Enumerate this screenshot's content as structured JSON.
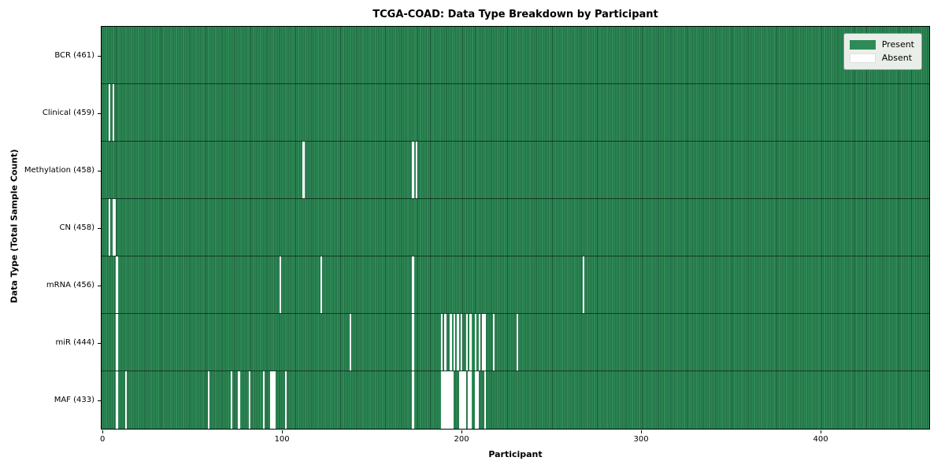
{
  "title": "TCGA-COAD: Data Type Breakdown by Participant",
  "x_axis_label": "Participant",
  "y_axis_label": "Data Type (Total Sample Count)",
  "legend": {
    "present_label": "Present",
    "absent_label": "Absent"
  },
  "chart_data": {
    "type": "heatmap",
    "title": "TCGA-COAD: Data Type Breakdown by Participant",
    "xlabel": "Participant",
    "ylabel": "Data Type (Total Sample Count)",
    "legend_entries": [
      "Present",
      "Absent"
    ],
    "legend_position": "upper right",
    "grid": false,
    "total_participants": 461,
    "x_ticks": [
      0,
      100,
      200,
      300,
      400
    ],
    "colors": {
      "present": "#2e8b57",
      "present_edge": "#1b5434",
      "absent": "#ffffff",
      "row_divider": "rgba(0,0,0,0.55)",
      "legend_bg": "#e9efe8"
    },
    "rows": [
      {
        "name": "BCR",
        "label": "BCR (461)",
        "present_count": 461,
        "absent_indices": []
      },
      {
        "name": "Clinical",
        "label": "Clinical (459)",
        "present_count": 459,
        "absent_indices": [
          4,
          6
        ]
      },
      {
        "name": "Methylation",
        "label": "Methylation (458)",
        "present_count": 458,
        "absent_indices": [
          112,
          173,
          175
        ]
      },
      {
        "name": "CN",
        "label": "CN (458)",
        "present_count": 458,
        "absent_indices": [
          4,
          6,
          7
        ]
      },
      {
        "name": "mRNA",
        "label": "mRNA (456)",
        "present_count": 456,
        "absent_indices": [
          8,
          99,
          122,
          173,
          268
        ]
      },
      {
        "name": "miR",
        "label": "miR (444)",
        "present_count": 444,
        "absent_indices": [
          8,
          138,
          173,
          189,
          191,
          194,
          196,
          198,
          200,
          203,
          205,
          208,
          210,
          212,
          213,
          218,
          231
        ]
      },
      {
        "name": "MAF",
        "label": "MAF (433)",
        "present_count": 433,
        "absent_indices": [
          8,
          13,
          59,
          72,
          76,
          82,
          90,
          94,
          95,
          96,
          102,
          173,
          189,
          190,
          191,
          192,
          193,
          194,
          195,
          199,
          200,
          201,
          202,
          204,
          205,
          208,
          209,
          213
        ]
      }
    ]
  }
}
